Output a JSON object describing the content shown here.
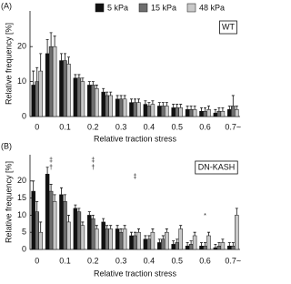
{
  "chart_data": [
    {
      "type": "bar",
      "panel_label": "(A)",
      "annotation": "WT",
      "xlabel": "Relative traction stress",
      "ylabel": "Relative frequency [%]",
      "categories": [
        "0",
        null,
        "0.1",
        null,
        "0.2",
        null,
        "0.3",
        null,
        "0.4",
        null,
        "0.5",
        null,
        "0.6",
        null,
        "0.7~"
      ],
      "series": [
        {
          "name": "5 kPa",
          "color": "#111111",
          "values": [
            9,
            18,
            16,
            11,
            9,
            7,
            5,
            4,
            3.5,
            3,
            2.5,
            2,
            1.5,
            1,
            2
          ],
          "errors": [
            4,
            4,
            2,
            1,
            1,
            1,
            1,
            1,
            1,
            1,
            1,
            1,
            1,
            1,
            1
          ]
        },
        {
          "name": "15 kPa",
          "color": "#6e6e6e",
          "values": [
            10,
            20,
            16,
            11,
            9,
            6,
            5,
            4,
            3,
            3,
            2.5,
            2,
            1.5,
            1.5,
            3
          ],
          "errors": [
            4,
            4,
            2,
            1,
            1,
            1,
            1,
            1,
            1,
            1,
            1,
            1,
            1,
            1,
            3
          ]
        },
        {
          "name": "48 kPa",
          "color": "#c8c8c8",
          "values": [
            13,
            20,
            15,
            10,
            8,
            6,
            5,
            4,
            3.5,
            3,
            2.5,
            2,
            2,
            1.5,
            2
          ],
          "errors": [
            5,
            3,
            2,
            1,
            1,
            1,
            1,
            1,
            1,
            1,
            1,
            1,
            1,
            1,
            1
          ]
        }
      ],
      "ylim": [
        0,
        25
      ],
      "yticks": [
        0,
        10,
        20
      ]
    },
    {
      "type": "bar",
      "panel_label": "(B)",
      "annotation": "DN-KASH",
      "xlabel": "Relative traction stress",
      "ylabel": "Relative frequency [%]",
      "categories": [
        "0",
        null,
        "0.1",
        null,
        "0.2",
        null,
        "0.3",
        null,
        "0.4",
        null,
        "0.5",
        null,
        "0.6",
        null,
        "0.7~"
      ],
      "series": [
        {
          "color": "#111111",
          "values": [
            17,
            22,
            16,
            12,
            10,
            8,
            6,
            4,
            3,
            2,
            1.5,
            1,
            1,
            0.5,
            1
          ],
          "errors": [
            3,
            2,
            2,
            1,
            1,
            1,
            1,
            1,
            1,
            1,
            1,
            1,
            1,
            1,
            1
          ]
        },
        {
          "color": "#6e6e6e",
          "values": [
            11,
            17,
            14,
            11,
            9,
            6,
            5,
            4,
            3,
            3,
            2,
            1.5,
            1,
            1,
            1
          ],
          "errors": [
            3,
            2,
            2,
            1,
            1,
            1,
            1,
            1,
            1,
            1,
            1,
            1,
            1,
            1,
            1
          ]
        },
        {
          "color": "#c8c8c8",
          "values": [
            5,
            14,
            8,
            7,
            6,
            6,
            6,
            5,
            5,
            5,
            6,
            4,
            4,
            2,
            10
          ],
          "errors": [
            3,
            2,
            2,
            1,
            1,
            1,
            1,
            1,
            1,
            1,
            1,
            1,
            1,
            1,
            2
          ]
        }
      ],
      "marks": [
        "‡",
        "†",
        "‡",
        "†",
        "‡",
        "*"
      ],
      "ylim": [
        0,
        25
      ],
      "yticks": [
        0,
        5,
        10,
        15,
        20
      ]
    }
  ]
}
